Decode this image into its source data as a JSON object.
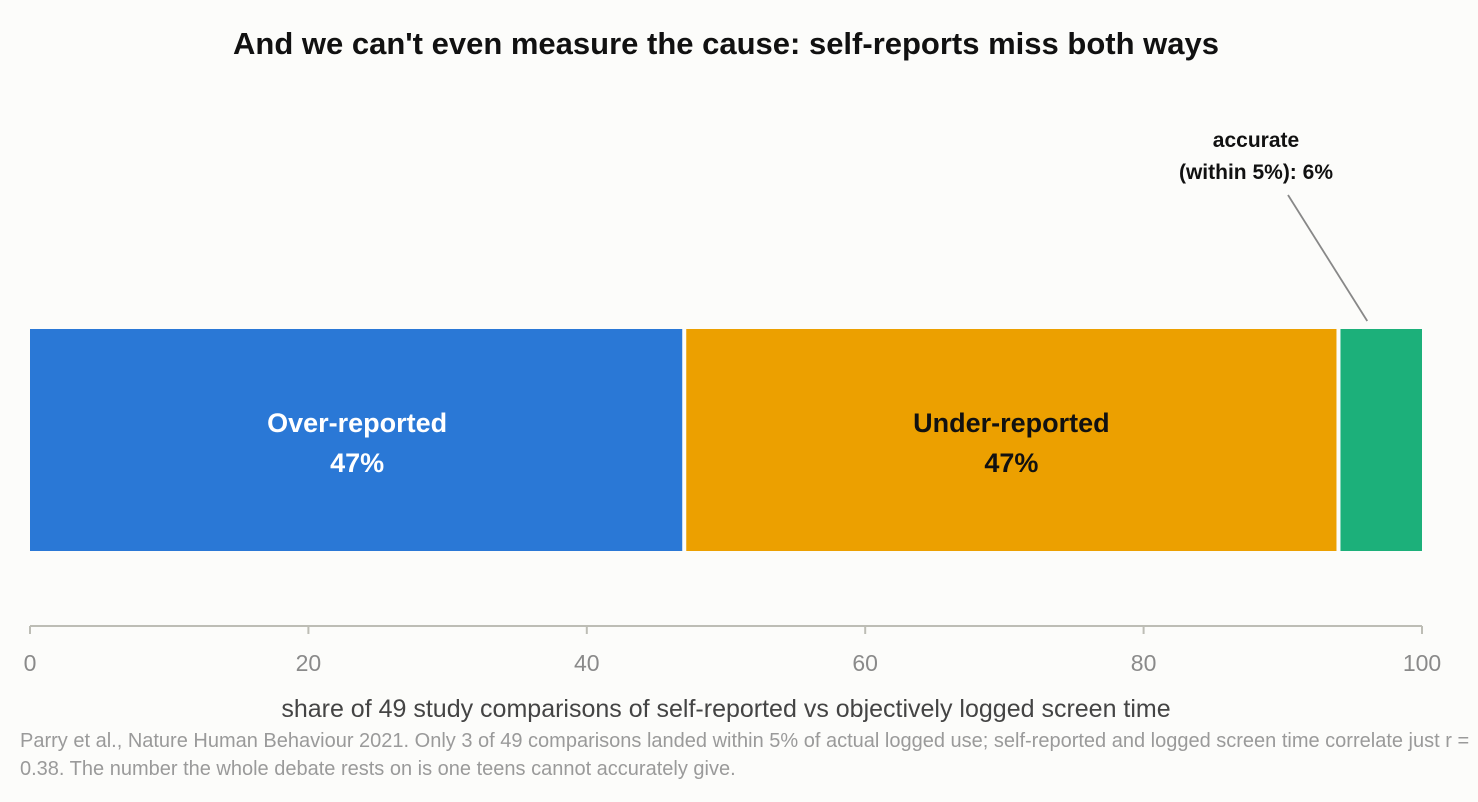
{
  "chart_data": {
    "type": "bar",
    "orientation": "horizontal-stacked",
    "title": "And we can't even measure the cause: self-reports miss both ways",
    "xlabel": "share of 49 study comparisons of self-reported vs objectively logged screen time",
    "xlim": [
      0,
      100
    ],
    "xticks": [
      0,
      20,
      40,
      60,
      80,
      100
    ],
    "grid": false,
    "segments": [
      {
        "name": "Over-reported",
        "value": 47,
        "value_label": "47%",
        "color": "#2a78d6",
        "text_color": "#ffffff"
      },
      {
        "name": "Under-reported",
        "value": 47,
        "value_label": "47%",
        "color": "#eca000",
        "text_color": "#111111"
      },
      {
        "name": "accurate",
        "value": 6,
        "color": "#1cb07a"
      }
    ],
    "annotation": {
      "lines": [
        "accurate",
        "(within 5%): 6%"
      ],
      "target_segment": 2
    }
  },
  "caption": "Parry et al., Nature Human Behaviour 2021. Only 3 of 49 comparisons landed within 5% of actual logged use; self-reported and logged screen time correlate just r = 0.38. The number the whole debate rests on is one teens cannot accurately give.",
  "colors": {
    "background": "#fcfcfa",
    "axis": "#bdbdb5",
    "tick_text": "#8a8a8a",
    "annotation_line": "#888888"
  }
}
